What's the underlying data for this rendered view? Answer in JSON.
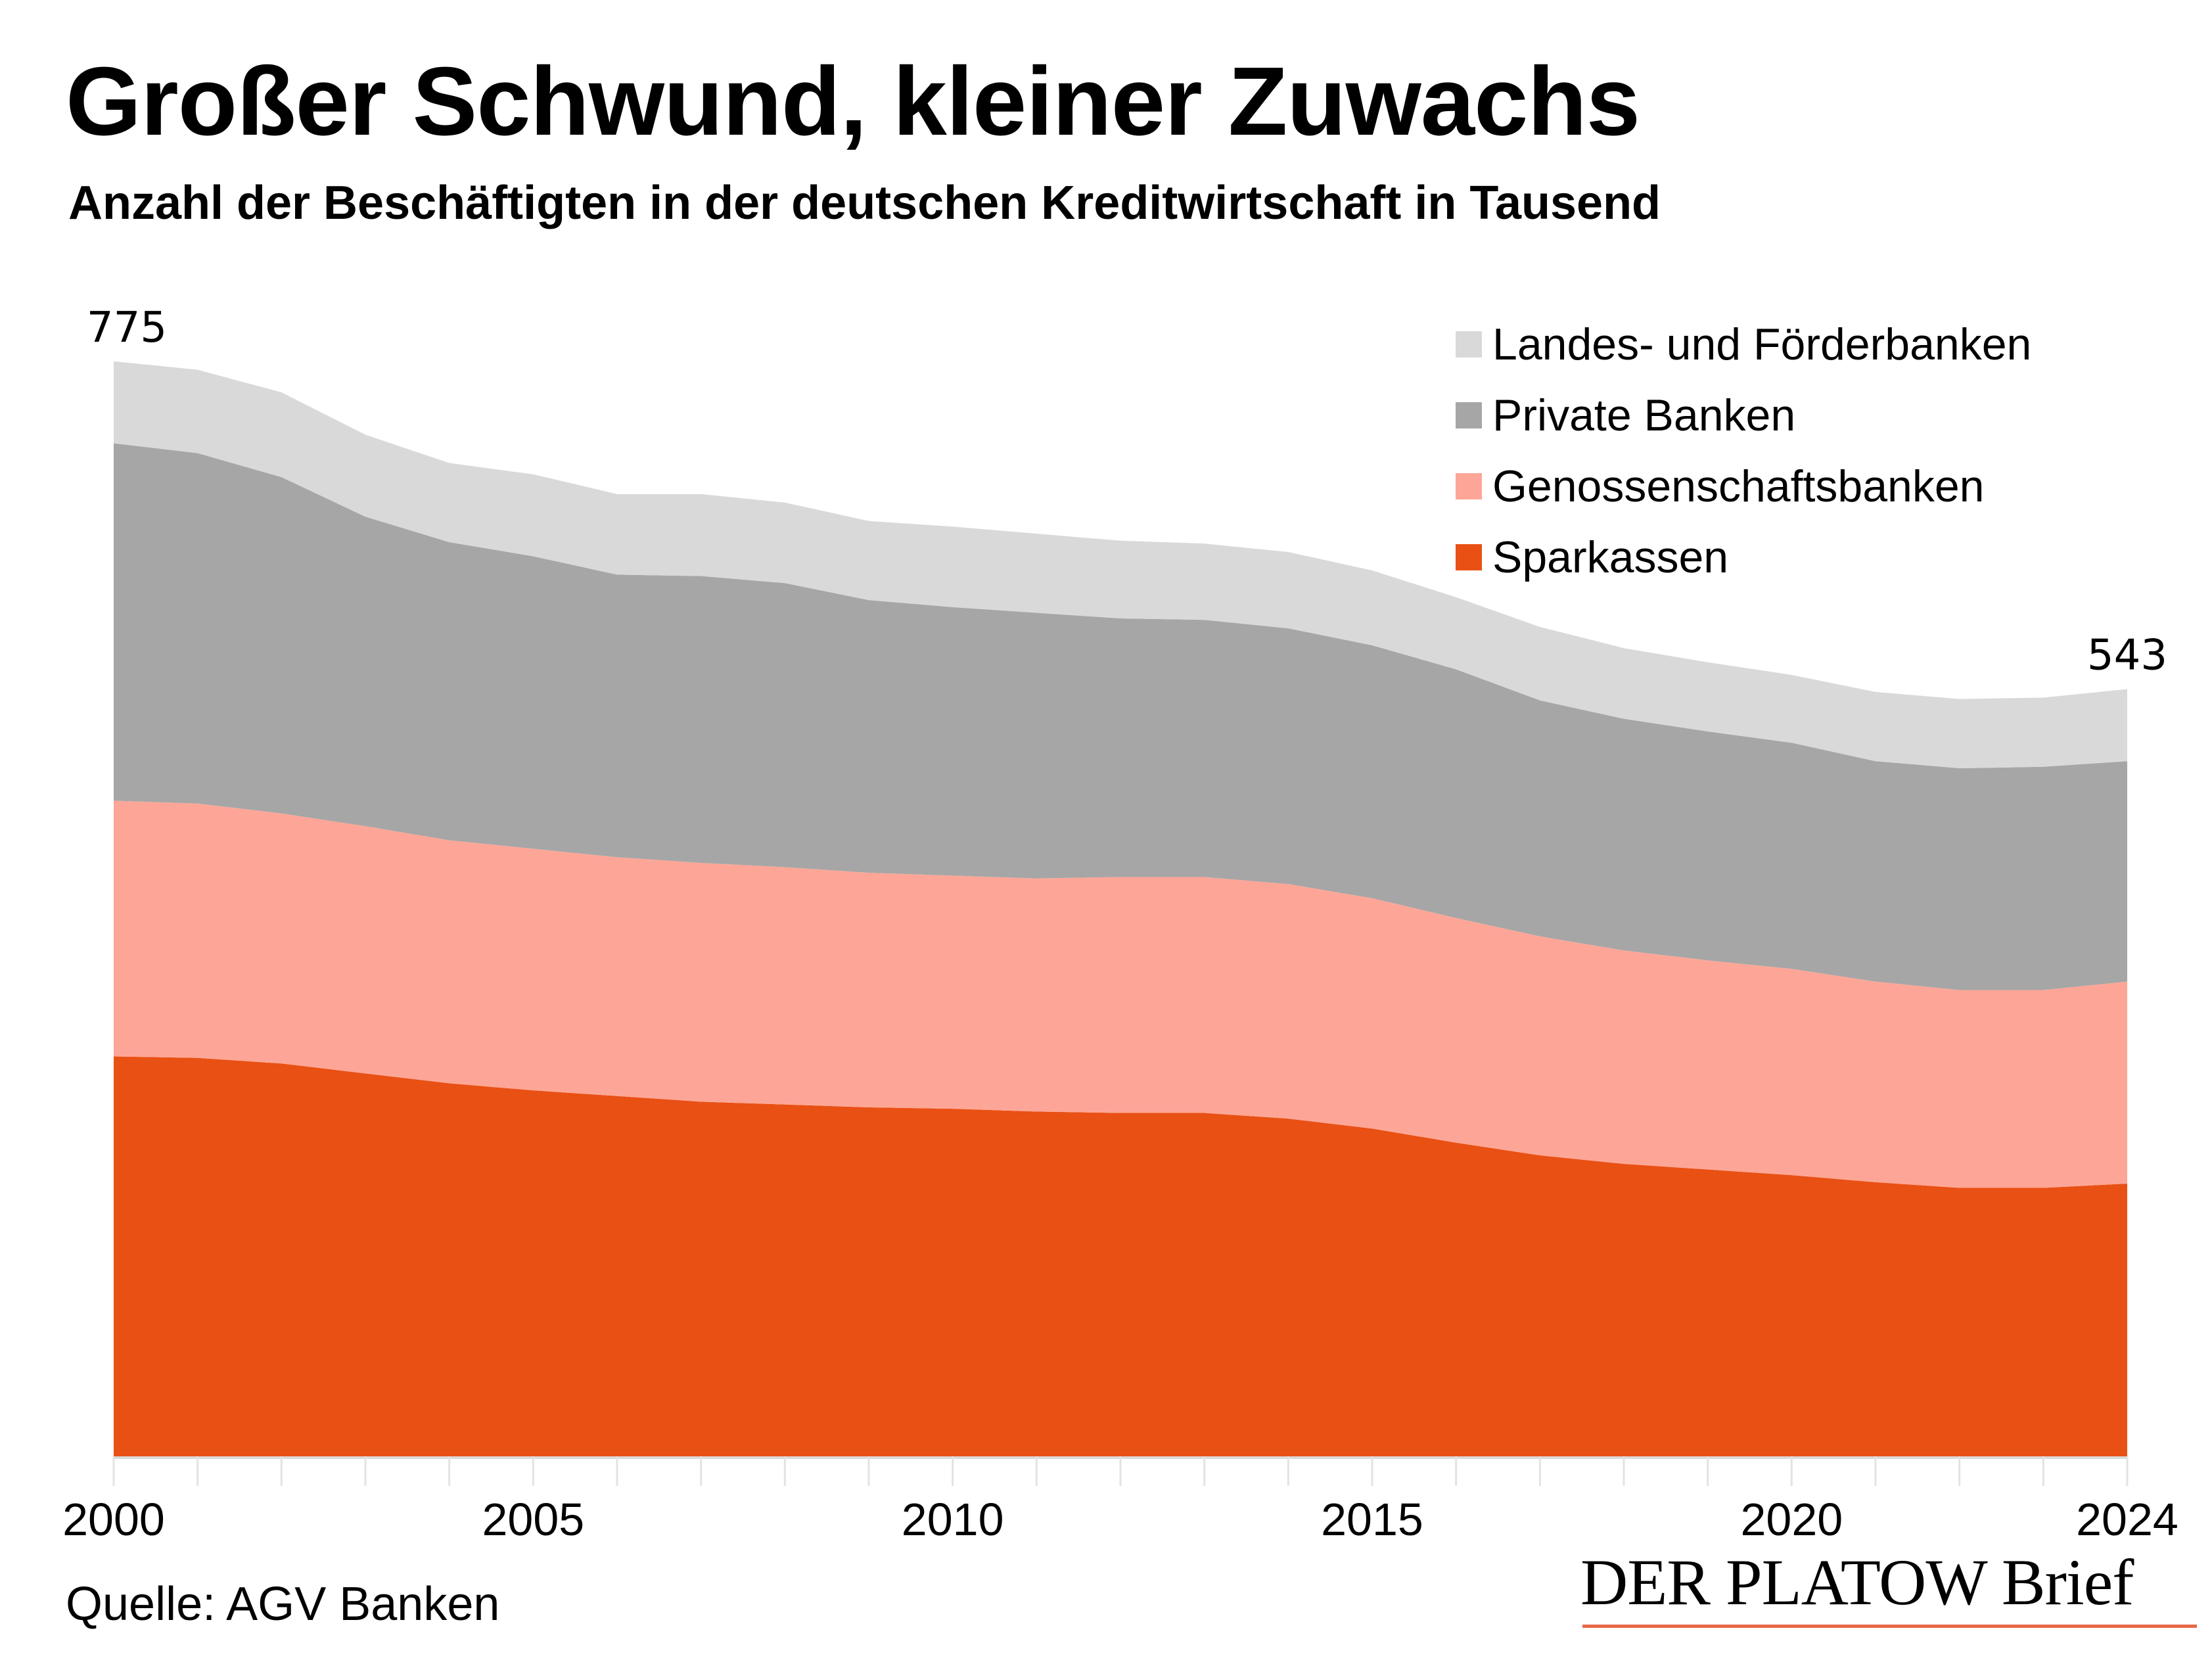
{
  "header": {
    "title": "Großer Schwund, kleiner Zuwachs",
    "subtitle": "Anzahl der Beschäftigten in der deutschen Kreditwirtschaft in Tausend"
  },
  "footer": {
    "source": "Quelle: AGV Banken",
    "brand": "DER PLATOW Brief"
  },
  "chart_data": {
    "type": "area",
    "stacked": true,
    "title": "Großer Schwund, kleiner Zuwachs",
    "subtitle": "Anzahl der Beschäftigten in der deutschen Kreditwirtschaft in Tausend",
    "xlabel": "",
    "ylabel": "",
    "x": [
      2000,
      2001,
      2002,
      2003,
      2004,
      2005,
      2006,
      2007,
      2008,
      2009,
      2010,
      2011,
      2012,
      2013,
      2014,
      2015,
      2016,
      2017,
      2018,
      2019,
      2020,
      2021,
      2022,
      2023,
      2024
    ],
    "x_tick_labels": [
      "2000",
      "2005",
      "2010",
      "2015",
      "2020",
      "2024"
    ],
    "ylim": [
      0,
      800
    ],
    "grid": false,
    "legend_position": "top-right",
    "annotations": [
      {
        "x": 2000,
        "text": "775"
      },
      {
        "x": 2024,
        "text": "543"
      }
    ],
    "series": [
      {
        "name": "Sparkassen",
        "color": "#e95014",
        "values": [
          283,
          282,
          278,
          271,
          264,
          259,
          255,
          251,
          249,
          247,
          246,
          244,
          243,
          243,
          239,
          232,
          222,
          213,
          207,
          203,
          199,
          194,
          190,
          190,
          193
        ]
      },
      {
        "name": "Genossenschaftsbanken",
        "color": "#fda697",
        "values": [
          181,
          180,
          177,
          175,
          172,
          171,
          169,
          169,
          168,
          166,
          165,
          165,
          167,
          167,
          166,
          163,
          159,
          155,
          151,
          148,
          146,
          142,
          140,
          140,
          143
        ]
      },
      {
        "name": "Private Banken",
        "color": "#a6a6a6",
        "values": [
          253,
          248,
          238,
          219,
          211,
          207,
          200,
          203,
          201,
          193,
          190,
          188,
          183,
          182,
          181,
          179,
          176,
          167,
          164,
          162,
          160,
          156,
          157,
          158,
          156
        ]
      },
      {
        "name": "Landes- und Förderbanken",
        "color": "#d9d9d9",
        "values": [
          58,
          59,
          60,
          58,
          56,
          58,
          57,
          58,
          57,
          56,
          57,
          56,
          55,
          54,
          54,
          53,
          51,
          52,
          50,
          49,
          48,
          49,
          49,
          49,
          51
        ]
      }
    ],
    "totals": [
      775,
      769,
      753,
      723,
      703,
      695,
      681,
      681,
      675,
      662,
      658,
      653,
      648,
      646,
      640,
      627,
      608,
      587,
      572,
      562,
      553,
      541,
      536,
      537,
      543
    ]
  },
  "legend": [
    {
      "label": "Landes- und Förderbanken",
      "color": "#d9d9d9"
    },
    {
      "label": "Private Banken",
      "color": "#a6a6a6"
    },
    {
      "label": "Genossenschaftsbanken",
      "color": "#fda697"
    },
    {
      "label": "Sparkassen",
      "color": "#e95014"
    }
  ]
}
